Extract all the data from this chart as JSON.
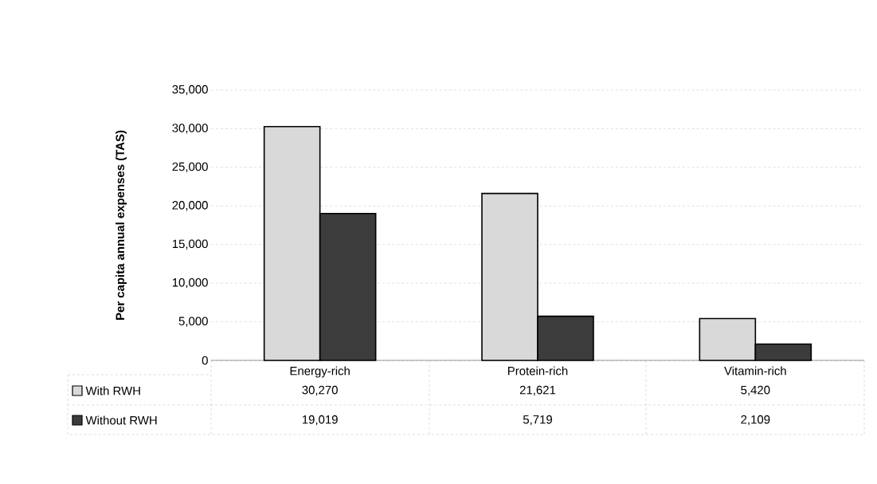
{
  "chart_data": {
    "type": "bar",
    "ylabel": "Per capita annual expenses (TAS)",
    "categories": [
      "Energy-rich",
      "Protein-rich",
      "Vitamin-rich"
    ],
    "series": [
      {
        "name": "With RWH",
        "color": "#d9d9d9",
        "values": [
          30270,
          21621,
          5420
        ],
        "value_labels": [
          "30,270",
          "21,621",
          "5,420"
        ]
      },
      {
        "name": "Without RWH",
        "color": "#3c3c3c",
        "values": [
          19019,
          5719,
          2109
        ],
        "value_labels": [
          "19,019",
          "5,719",
          "2,109"
        ]
      }
    ],
    "ylim": [
      0,
      35000
    ],
    "yticks": [
      {
        "value": 0,
        "label": "0"
      },
      {
        "value": 5000,
        "label": "5,000"
      },
      {
        "value": 10000,
        "label": "10,000"
      },
      {
        "value": 15000,
        "label": "15,000"
      },
      {
        "value": 20000,
        "label": "20,000"
      },
      {
        "value": 25000,
        "label": "25,000"
      },
      {
        "value": 30000,
        "label": "30,000"
      },
      {
        "value": 35000,
        "label": "35,000"
      }
    ],
    "grid": "y",
    "legend": "bottom"
  }
}
